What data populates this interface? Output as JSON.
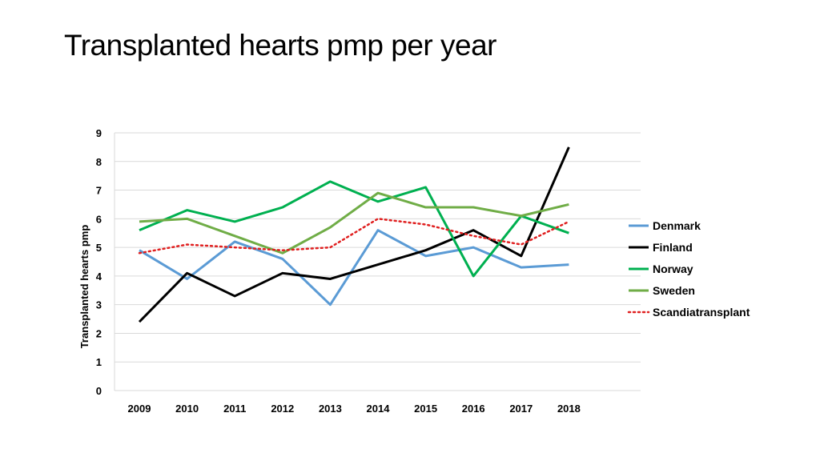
{
  "title": "Transplanted hearts pmp per year",
  "chart_data": {
    "type": "line",
    "title": "",
    "xlabel": "",
    "ylabel": "Transplanted hearts pmp",
    "ylim": [
      0,
      9
    ],
    "yticks": [
      "0",
      "1",
      "2",
      "3",
      "4",
      "5",
      "6",
      "7",
      "8",
      "9"
    ],
    "x": [
      "2009",
      "2010",
      "2011",
      "2012",
      "2013",
      "2014",
      "2015",
      "2016",
      "2017",
      "2018"
    ],
    "grid": true,
    "legend_position": "right",
    "series": [
      {
        "name": "Denmark",
        "color": "#5b9bd5",
        "dash": "solid",
        "values": [
          4.9,
          3.9,
          5.2,
          4.6,
          3.0,
          5.6,
          4.7,
          5.0,
          4.3,
          4.4
        ]
      },
      {
        "name": "Finland",
        "color": "#000000",
        "dash": "solid",
        "values": [
          2.4,
          4.1,
          3.3,
          4.1,
          3.9,
          4.4,
          4.9,
          5.6,
          4.7,
          8.5
        ]
      },
      {
        "name": "Norway",
        "color": "#00b050",
        "dash": "solid",
        "values": [
          5.6,
          6.3,
          5.9,
          6.4,
          7.3,
          6.6,
          7.1,
          4.0,
          6.1,
          5.5
        ]
      },
      {
        "name": "Sweden",
        "color": "#70ad47",
        "dash": "solid",
        "values": [
          5.9,
          6.0,
          5.4,
          4.8,
          5.7,
          6.9,
          6.4,
          6.4,
          6.1,
          6.5
        ]
      },
      {
        "name": "Scandiatransplant",
        "color": "#e02020",
        "dash": "dotted",
        "values": [
          4.8,
          5.1,
          5.0,
          4.9,
          5.0,
          6.0,
          5.8,
          5.4,
          5.1,
          5.9
        ]
      }
    ]
  }
}
